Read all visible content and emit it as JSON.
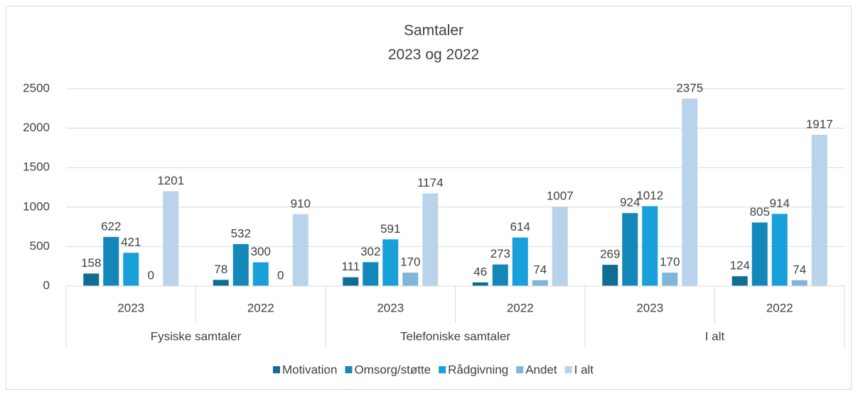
{
  "chart_data": {
    "type": "bar",
    "title": "Samtaler",
    "subtitle": "2023 og 2022",
    "categories": [
      "2023",
      "2022",
      "2023",
      "2022",
      "2023",
      "2022"
    ],
    "groups": [
      "Fysiske samtaler",
      "Telefoniske samtaler",
      "I alt"
    ],
    "series": [
      {
        "name": "Motivation",
        "color": "#0f6d93",
        "values": [
          158,
          78,
          111,
          46,
          269,
          124
        ]
      },
      {
        "name": "Omsorg/støtte",
        "color": "#1487ba",
        "values": [
          622,
          532,
          302,
          273,
          924,
          805
        ]
      },
      {
        "name": "Rådgivning",
        "color": "#17a0d9",
        "values": [
          421,
          300,
          591,
          614,
          1012,
          914
        ]
      },
      {
        "name": "Andet",
        "color": "#7fb6dc",
        "values": [
          0,
          0,
          170,
          74,
          170,
          74
        ]
      },
      {
        "name": "I alt",
        "color": "#b9d3ea",
        "values": [
          1201,
          910,
          1174,
          1007,
          2375,
          1917
        ]
      }
    ],
    "ylim": [
      0,
      2500
    ],
    "yticks": [
      0,
      500,
      1000,
      1500,
      2000,
      2500
    ],
    "grid": true,
    "legend": "bottom"
  }
}
